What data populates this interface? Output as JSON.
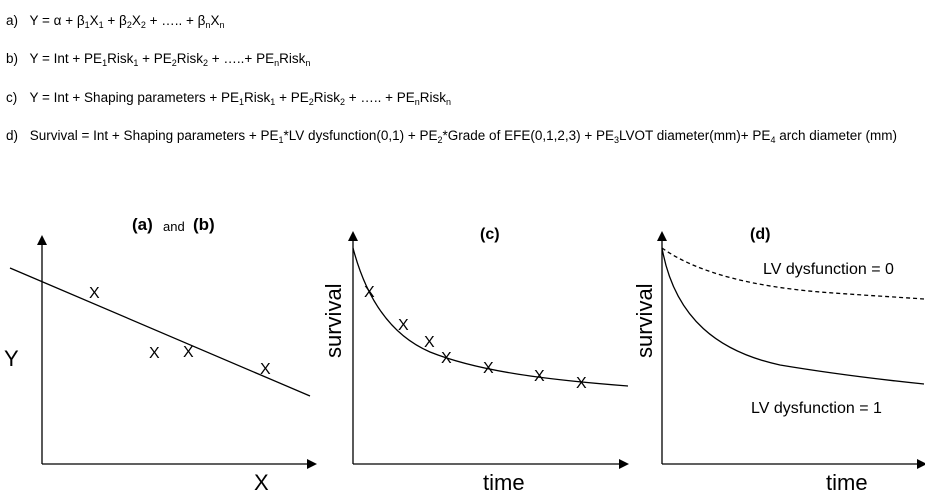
{
  "equations": {
    "a": {
      "label": "a)",
      "parts": [
        "Y = α + β",
        "1",
        "X",
        "1",
        " + β",
        "2",
        "X",
        "2",
        " + ….. + β",
        "n",
        "X",
        "n"
      ]
    },
    "b": {
      "label": "b)",
      "parts": [
        "Y = Int + PE",
        "1",
        "Risk",
        "1",
        " + PE",
        "2",
        "Risk",
        "2",
        " + …..+ PE",
        "n",
        "Risk",
        "n"
      ]
    },
    "c": {
      "label": "c)",
      "parts": [
        "Y = Int + Shaping parameters + PE",
        "1",
        "Risk",
        "1",
        " + PE",
        "2",
        "Risk",
        "2",
        " + ….. + PE",
        "n",
        "Risk",
        "n"
      ]
    },
    "d": {
      "label": "d)",
      "parts": [
        "Survival = Int + Shaping parameters + PE",
        "1",
        "*LV dysfunction(0,1) + PE",
        "2",
        "*Grade of EFE(0,1,2,3) + PE",
        "3",
        "LVOT diameter(mm)+ PE",
        "4",
        " arch diameter (mm)"
      ]
    }
  },
  "panels": {
    "ab": {
      "title_1": "(a)",
      "title_and": "and",
      "title_2": "(b)",
      "ylabel": "Y",
      "xlabel": "X",
      "marker": "X"
    },
    "c": {
      "title": "(c)",
      "ylabel": "survival",
      "xlabel": "time",
      "marker": "X"
    },
    "d": {
      "title": "(d)",
      "ylabel": "survival",
      "xlabel": "time",
      "curve_upper_label": "LV dysfunction = 0",
      "curve_lower_label": "LV dysfunction = 1"
    }
  }
}
